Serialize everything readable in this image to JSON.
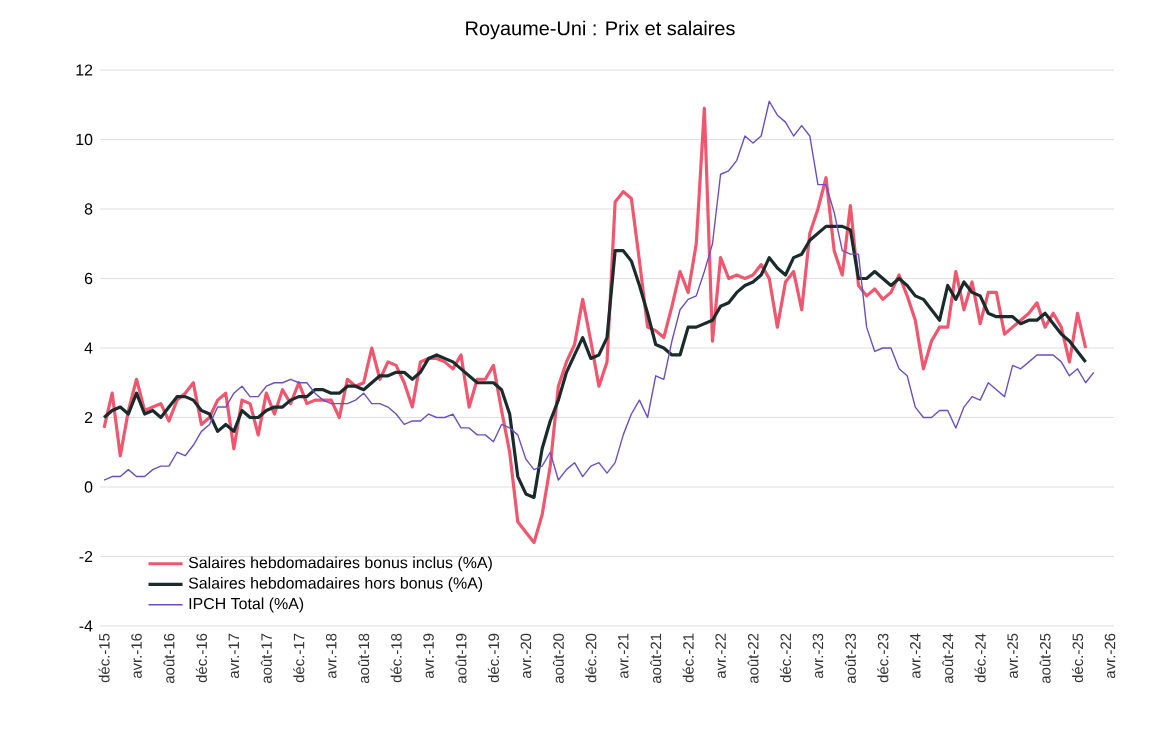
{
  "chart_data": {
    "type": "line",
    "title": "Royaume-Uni : Prix et salaires",
    "categories": [
      "déc.-15",
      null,
      null,
      null,
      "avr.-16",
      null,
      null,
      null,
      "août-16",
      null,
      null,
      null,
      "déc.-16",
      null,
      null,
      null,
      "avr.-17",
      null,
      null,
      null,
      "août-17",
      null,
      null,
      null,
      "déc.-17",
      null,
      null,
      null,
      "avr.-18",
      null,
      null,
      null,
      "août-18",
      null,
      null,
      null,
      "déc.-18",
      null,
      null,
      null,
      "avr.-19",
      null,
      null,
      null,
      "août-19",
      null,
      null,
      null,
      "déc.-19",
      null,
      null,
      null,
      "avr.-20",
      null,
      null,
      null,
      "août-20",
      null,
      null,
      null,
      "déc.-20",
      null,
      null,
      null,
      "avr.-21",
      null,
      null,
      null,
      "août-21",
      null,
      null,
      null,
      "déc.-21",
      null,
      null,
      null,
      "avr.-22",
      null,
      null,
      null,
      "août-22",
      null,
      null,
      null,
      "déc.-22",
      null,
      null,
      null,
      "avr.-23",
      null,
      null,
      null,
      "août-23",
      null,
      null,
      null,
      "déc.-23",
      null,
      null,
      null,
      "avr.-24",
      null,
      null,
      null,
      "août-24",
      null,
      null,
      null,
      "déc.-24",
      null,
      null,
      null,
      "avr.-25",
      null,
      null,
      null,
      "août-25",
      null,
      null,
      null,
      "déc.-25",
      null,
      null,
      null,
      "avr.-26"
    ],
    "series": [
      {
        "name": "Salaires hebdomadaires bonus inclus (%A)",
        "color": "#f0566e",
        "values": [
          1.7,
          2.7,
          0.9,
          2.2,
          3.1,
          2.2,
          2.3,
          2.4,
          1.9,
          2.5,
          2.7,
          3.0,
          1.8,
          2.0,
          2.5,
          2.7,
          1.1,
          2.5,
          2.4,
          1.5,
          2.7,
          2.1,
          2.8,
          2.4,
          3.0,
          2.4,
          2.5,
          2.5,
          2.5,
          2.0,
          3.1,
          2.9,
          3.0,
          4.0,
          3.1,
          3.6,
          3.5,
          3.0,
          2.3,
          3.6,
          3.7,
          3.7,
          3.6,
          3.4,
          3.8,
          2.3,
          3.1,
          3.1,
          3.5,
          2.2,
          1.0,
          -1.0,
          -1.3,
          -1.6,
          -0.8,
          0.6,
          2.9,
          3.6,
          4.1,
          5.4,
          4.2,
          2.9,
          3.6,
          8.2,
          8.5,
          8.3,
          6.5,
          4.6,
          4.5,
          4.3,
          5.2,
          6.2,
          5.6,
          7.0,
          10.9,
          4.2,
          6.6,
          6.0,
          6.1,
          6.0,
          6.1,
          6.4,
          6.0,
          4.6,
          5.9,
          6.2,
          5.1,
          7.3,
          8.0,
          8.9,
          6.8,
          6.1,
          8.1,
          5.8,
          5.5,
          5.7,
          5.4,
          5.6,
          6.1,
          5.5,
          4.8,
          3.4,
          4.2,
          4.6,
          4.6,
          6.2,
          5.1,
          5.9,
          4.7,
          5.6,
          5.6,
          4.4,
          4.6,
          4.8,
          5.0,
          5.3,
          4.6,
          5.0,
          4.6,
          3.6,
          5.0,
          4.0,
          null,
          null,
          null
        ]
      },
      {
        "name": "Salaires hebdomadaires hors bonus (%A)",
        "color": "#1a2b2b",
        "values": [
          2.0,
          2.2,
          2.3,
          2.1,
          2.7,
          2.1,
          2.2,
          2.0,
          2.3,
          2.6,
          2.6,
          2.5,
          2.2,
          2.1,
          1.6,
          1.8,
          1.6,
          2.2,
          2.0,
          2.0,
          2.2,
          2.3,
          2.3,
          2.5,
          2.6,
          2.6,
          2.8,
          2.8,
          2.7,
          2.7,
          2.9,
          2.9,
          2.8,
          3.0,
          3.2,
          3.2,
          3.3,
          3.3,
          3.1,
          3.3,
          3.7,
          3.8,
          3.7,
          3.6,
          3.4,
          3.2,
          3.0,
          3.0,
          3.0,
          2.8,
          2.1,
          0.3,
          -0.2,
          -0.3,
          1.1,
          1.9,
          2.5,
          3.3,
          3.8,
          4.3,
          3.7,
          3.8,
          4.3,
          6.8,
          6.8,
          6.5,
          5.8,
          5.0,
          4.1,
          4.0,
          3.8,
          3.8,
          4.6,
          4.6,
          4.7,
          4.8,
          5.2,
          5.3,
          5.6,
          5.8,
          5.9,
          6.1,
          6.6,
          6.3,
          6.1,
          6.6,
          6.7,
          7.1,
          7.3,
          7.5,
          7.5,
          7.5,
          7.4,
          6.0,
          6.0,
          6.2,
          6.0,
          5.8,
          6.0,
          5.8,
          5.5,
          5.4,
          5.1,
          4.8,
          5.8,
          5.4,
          5.9,
          5.6,
          5.5,
          5.0,
          4.9,
          4.9,
          4.9,
          4.7,
          4.8,
          4.8,
          5.0,
          4.7,
          4.4,
          4.2,
          3.9,
          3.6,
          null,
          null,
          null
        ]
      },
      {
        "name": "IPCH Total (%A)",
        "color": "#6a4fc4",
        "values": [
          0.2,
          0.3,
          0.3,
          0.5,
          0.3,
          0.3,
          0.5,
          0.6,
          0.6,
          1.0,
          0.9,
          1.2,
          1.6,
          1.8,
          2.3,
          2.3,
          2.7,
          2.9,
          2.6,
          2.6,
          2.9,
          3.0,
          3.0,
          3.1,
          3.0,
          3.0,
          2.7,
          2.5,
          2.4,
          2.4,
          2.4,
          2.5,
          2.7,
          2.4,
          2.4,
          2.3,
          2.1,
          1.8,
          1.9,
          1.9,
          2.1,
          2.0,
          2.0,
          2.1,
          1.7,
          1.7,
          1.5,
          1.5,
          1.3,
          1.8,
          1.7,
          1.5,
          0.8,
          0.5,
          0.6,
          1.0,
          0.2,
          0.5,
          0.7,
          0.3,
          0.6,
          0.7,
          0.4,
          0.7,
          1.5,
          2.1,
          2.5,
          2.0,
          3.2,
          3.1,
          4.2,
          5.1,
          5.4,
          5.5,
          6.2,
          7.0,
          9.0,
          9.1,
          9.4,
          10.1,
          9.9,
          10.1,
          11.1,
          10.7,
          10.5,
          10.1,
          10.4,
          10.1,
          8.7,
          8.7,
          7.9,
          6.8,
          6.7,
          6.7,
          4.6,
          3.9,
          4.0,
          4.0,
          3.4,
          3.2,
          2.3,
          2.0,
          2.0,
          2.2,
          2.2,
          1.7,
          2.3,
          2.6,
          2.5,
          3.0,
          2.8,
          2.6,
          3.5,
          3.4,
          3.6,
          3.8,
          3.8,
          3.8,
          3.6,
          3.2,
          3.4,
          3.0,
          3.3,
          null,
          null
        ]
      }
    ],
    "ylim": [
      -4,
      12
    ],
    "yticks": [
      -4,
      -2,
      0,
      2,
      4,
      6,
      8,
      10,
      12
    ],
    "grid": "y",
    "legend": "bottom left"
  }
}
